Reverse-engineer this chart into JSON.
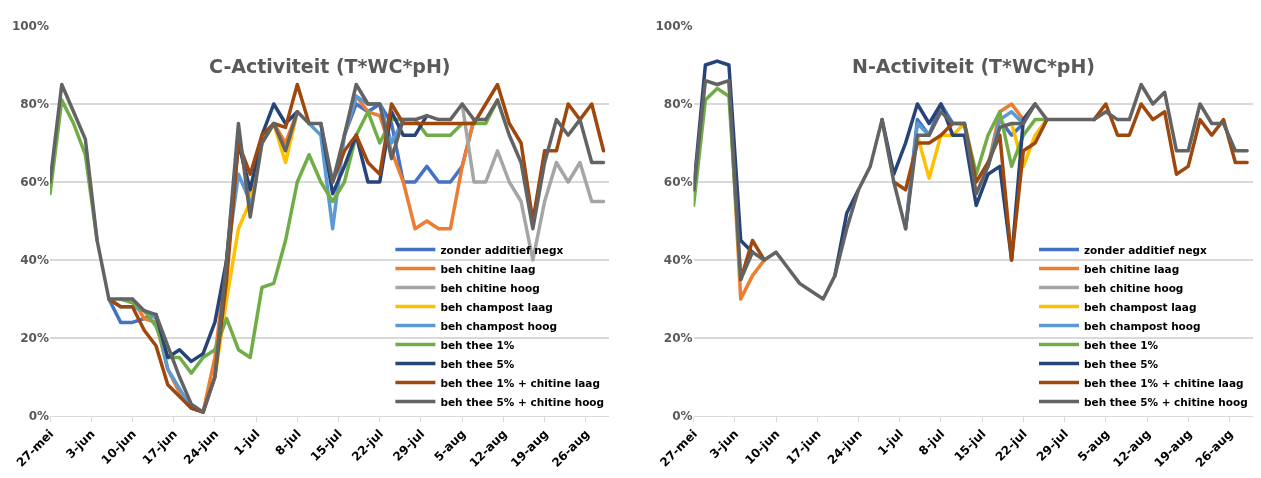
{
  "chart_data": [
    {
      "type": "line",
      "title": "C-Activiteit (T*WC*pH)",
      "grid": "y",
      "legend": "bottom right",
      "marker": "none",
      "line_style": "solid",
      "ylim": [
        0,
        100
      ],
      "yticks": [
        {
          "value": 0,
          "label": "0%"
        },
        {
          "value": 20,
          "label": "20%"
        },
        {
          "value": 40,
          "label": "40%"
        },
        {
          "value": 60,
          "label": "60%"
        },
        {
          "value": 80,
          "label": "80%"
        },
        {
          "value": 100,
          "label": "100%"
        }
      ],
      "xlim": [
        "--05-27",
        "--08-30"
      ],
      "xticks": [
        {
          "value": "--05-27",
          "label": "27-mei"
        },
        {
          "value": "--06-03",
          "label": "3-jun"
        },
        {
          "value": "--06-10",
          "label": "10-jun"
        },
        {
          "value": "--06-17",
          "label": "17-jun"
        },
        {
          "value": "--06-24",
          "label": "24-jun"
        },
        {
          "value": "--07-01",
          "label": "1-jul"
        },
        {
          "value": "--07-08",
          "label": "8-jul"
        },
        {
          "value": "--07-15",
          "label": "15-jul"
        },
        {
          "value": "--07-22",
          "label": "22-jul"
        },
        {
          "value": "--07-29",
          "label": "29-jul"
        },
        {
          "value": "--08-05",
          "label": "5-aug"
        },
        {
          "value": "--08-12",
          "label": "12-aug"
        },
        {
          "value": "--08-19",
          "label": "19-aug"
        },
        {
          "value": "--08-26",
          "label": "26-aug"
        }
      ],
      "x": [
        "--05-27",
        "--05-29",
        "--05-31",
        "--06-02",
        "--06-04",
        "--06-06",
        "--06-08",
        "--06-10",
        "--06-12",
        "--06-14",
        "--06-16",
        "--06-18",
        "--06-20",
        "--06-22",
        "--06-24",
        "--06-26",
        "--06-28",
        "--06-30",
        "--07-02",
        "--07-04",
        "--07-06",
        "--07-08",
        "--07-10",
        "--07-12",
        "--07-14",
        "--07-16",
        "--07-18",
        "--07-20",
        "--07-22",
        "--07-24",
        "--07-26",
        "--07-28",
        "--07-30",
        "--08-01",
        "--08-03",
        "--08-05",
        "--08-07",
        "--08-09",
        "--08-11",
        "--08-13",
        "--08-15",
        "--08-17",
        "--08-19",
        "--08-21",
        "--08-23",
        "--08-25",
        "--08-27",
        "--08-29"
      ],
      "series": [
        {
          "name": "zonder additief negx",
          "color": "#4472c4",
          "values": [
            null,
            null,
            null,
            null,
            null,
            30,
            24,
            24,
            25,
            26,
            null,
            null,
            null,
            null,
            null,
            null,
            null,
            null,
            null,
            null,
            null,
            null,
            null,
            null,
            null,
            72,
            80,
            78,
            80,
            75,
            60,
            60,
            64,
            60,
            60,
            64,
            76,
            null,
            null,
            null,
            null,
            null,
            null,
            null,
            null,
            null,
            null,
            null
          ]
        },
        {
          "name": "beh chitine laag",
          "color": "#ed7d31",
          "values": [
            null,
            null,
            null,
            null,
            null,
            null,
            null,
            30,
            25,
            24,
            12,
            6,
            2,
            1,
            15,
            40,
            72,
            55,
            70,
            75,
            70,
            78,
            null,
            null,
            null,
            72,
            82,
            78,
            77,
            68,
            60,
            48,
            50,
            48,
            48,
            64,
            76,
            null,
            null,
            null,
            null,
            null,
            null,
            null,
            null,
            null,
            null,
            null
          ]
        },
        {
          "name": "beh chitine hoog",
          "color": "#a5a5a5",
          "values": [
            null,
            null,
            null,
            null,
            null,
            null,
            null,
            null,
            null,
            null,
            null,
            null,
            null,
            null,
            null,
            null,
            null,
            null,
            null,
            null,
            null,
            null,
            null,
            null,
            null,
            null,
            null,
            null,
            null,
            null,
            null,
            null,
            null,
            null,
            null,
            80,
            60,
            60,
            68,
            60,
            55,
            40,
            55,
            65,
            60,
            65,
            55,
            55
          ]
        },
        {
          "name": "beh champost laag",
          "color": "#ffc000",
          "values": [
            null,
            null,
            null,
            null,
            null,
            null,
            null,
            null,
            null,
            null,
            null,
            null,
            null,
            null,
            10,
            30,
            48,
            55,
            70,
            75,
            65,
            78,
            null,
            null,
            null,
            null,
            null,
            null,
            null,
            null,
            null,
            null,
            null,
            null,
            null,
            null,
            null,
            null,
            null,
            null,
            null,
            null,
            null,
            null,
            null,
            null,
            null,
            null
          ]
        },
        {
          "name": "beh champost hoog",
          "color": "#5b9bd5",
          "values": [
            null,
            null,
            null,
            null,
            null,
            30,
            28,
            28,
            27,
            25,
            12,
            7,
            2,
            1,
            null,
            40,
            62,
            55,
            null,
            null,
            null,
            null,
            75,
            72,
            48,
            72,
            82,
            80,
            80,
            70,
            76,
            null,
            null,
            null,
            null,
            null,
            null,
            null,
            null,
            null,
            null,
            null,
            null,
            null,
            null,
            null,
            null,
            null
          ]
        },
        {
          "name": "beh thee 1%",
          "color": "#70ad47",
          "values": [
            57,
            81,
            75,
            67,
            45,
            null,
            30,
            29,
            27,
            23,
            15,
            15,
            11,
            15,
            17,
            25,
            17,
            15,
            33,
            34,
            45,
            60,
            67,
            60,
            55,
            60,
            72,
            78,
            70,
            76,
            76,
            76,
            72,
            72,
            72,
            75,
            75,
            75,
            81,
            null,
            null,
            null,
            null,
            null,
            null,
            null,
            null,
            null
          ]
        },
        {
          "name": "beh thee 5%",
          "color": "#264478",
          "values": [
            null,
            null,
            null,
            null,
            null,
            null,
            null,
            null,
            null,
            26,
            15,
            17,
            14,
            16,
            24,
            40,
            70,
            58,
            72,
            80,
            75,
            78,
            null,
            75,
            57,
            64,
            72,
            60,
            60,
            78,
            72,
            72,
            77,
            null,
            null,
            null,
            null,
            null,
            null,
            null,
            null,
            null,
            null,
            null,
            null,
            null,
            null,
            null
          ]
        },
        {
          "name": "beh thee 1% + chitine laag",
          "color": "#9e480e",
          "values": [
            null,
            null,
            null,
            null,
            null,
            30,
            28,
            28,
            22,
            18,
            8,
            5,
            2,
            1,
            10,
            35,
            70,
            62,
            72,
            75,
            74,
            85,
            75,
            null,
            60,
            68,
            72,
            65,
            62,
            80,
            75,
            75,
            75,
            75,
            75,
            75,
            75,
            80,
            85,
            75,
            70,
            50,
            68,
            68,
            80,
            76,
            80,
            68
          ]
        },
        {
          "name": "beh thee 5% + chitine hoog",
          "color": "#636363",
          "values": [
            60,
            85,
            78,
            71,
            45,
            30,
            30,
            30,
            27,
            26,
            18,
            10,
            3,
            1,
            10,
            40,
            75,
            51,
            70,
            75,
            68,
            78,
            75,
            75,
            60,
            72,
            85,
            80,
            80,
            66,
            76,
            76,
            77,
            76,
            76,
            80,
            76,
            76,
            81,
            72,
            65,
            48,
            65,
            76,
            72,
            76,
            65,
            65
          ]
        }
      ]
    },
    {
      "type": "line",
      "title": "N-Activiteit (T*WC*pH)",
      "grid": "y",
      "legend": "bottom right",
      "marker": "none",
      "line_style": "solid",
      "ylim": [
        0,
        100
      ],
      "yticks": [
        {
          "value": 0,
          "label": "0%"
        },
        {
          "value": 20,
          "label": "20%"
        },
        {
          "value": 40,
          "label": "40%"
        },
        {
          "value": 60,
          "label": "60%"
        },
        {
          "value": 80,
          "label": "80%"
        },
        {
          "value": 100,
          "label": "100%"
        }
      ],
      "xlim": [
        "--05-27",
        "--08-30"
      ],
      "xticks": [
        {
          "value": "--05-27",
          "label": "27-mei"
        },
        {
          "value": "--06-03",
          "label": "3-jun"
        },
        {
          "value": "--06-10",
          "label": "10-jun"
        },
        {
          "value": "--06-17",
          "label": "17-jun"
        },
        {
          "value": "--06-24",
          "label": "24-jun"
        },
        {
          "value": "--07-01",
          "label": "1-jul"
        },
        {
          "value": "--07-08",
          "label": "8-jul"
        },
        {
          "value": "--07-15",
          "label": "15-jul"
        },
        {
          "value": "--07-22",
          "label": "22-jul"
        },
        {
          "value": "--07-29",
          "label": "29-jul"
        },
        {
          "value": "--08-05",
          "label": "5-aug"
        },
        {
          "value": "--08-12",
          "label": "12-aug"
        },
        {
          "value": "--08-19",
          "label": "19-aug"
        },
        {
          "value": "--08-26",
          "label": "26-aug"
        }
      ],
      "x": [
        "--05-27",
        "--05-29",
        "--05-31",
        "--06-02",
        "--06-04",
        "--06-06",
        "--06-08",
        "--06-10",
        "--06-12",
        "--06-14",
        "--06-16",
        "--06-18",
        "--06-20",
        "--06-22",
        "--06-24",
        "--06-26",
        "--06-28",
        "--06-30",
        "--07-02",
        "--07-04",
        "--07-06",
        "--07-08",
        "--07-10",
        "--07-12",
        "--07-14",
        "--07-16",
        "--07-18",
        "--07-20",
        "--07-22",
        "--07-24",
        "--07-26",
        "--07-28",
        "--07-30",
        "--08-01",
        "--08-03",
        "--08-05",
        "--08-07",
        "--08-09",
        "--08-11",
        "--08-13",
        "--08-15",
        "--08-17",
        "--08-19",
        "--08-21",
        "--08-23",
        "--08-25",
        "--08-27",
        "--08-29"
      ],
      "series": [
        {
          "name": "zonder additief negx",
          "color": "#4472c4",
          "values": [
            null,
            null,
            null,
            null,
            null,
            null,
            null,
            null,
            null,
            null,
            null,
            null,
            null,
            null,
            null,
            null,
            null,
            null,
            48,
            76,
            72,
            80,
            75,
            null,
            null,
            null,
            76,
            72,
            75,
            null,
            null,
            null,
            null,
            null,
            null,
            null,
            null,
            null,
            null,
            null,
            null,
            null,
            null,
            null,
            null,
            null,
            null,
            null
          ]
        },
        {
          "name": "beh chitine laag",
          "color": "#ed7d31",
          "values": [
            null,
            null,
            null,
            86,
            30,
            36,
            40,
            null,
            null,
            null,
            null,
            null,
            null,
            null,
            null,
            null,
            null,
            null,
            null,
            null,
            null,
            null,
            null,
            null,
            null,
            64,
            78,
            80,
            76,
            80,
            null,
            null,
            null,
            null,
            null,
            null,
            null,
            null,
            null,
            null,
            null,
            null,
            null,
            null,
            null,
            null,
            null,
            null
          ]
        },
        {
          "name": "beh chitine hoog",
          "color": "#a5a5a5",
          "values": [
            null,
            null,
            null,
            null,
            null,
            null,
            null,
            null,
            null,
            null,
            null,
            null,
            null,
            null,
            null,
            null,
            null,
            null,
            null,
            null,
            null,
            null,
            null,
            null,
            null,
            null,
            null,
            null,
            null,
            null,
            null,
            null,
            null,
            null,
            null,
            null,
            null,
            null,
            null,
            null,
            null,
            null,
            null,
            null,
            null,
            null,
            null,
            null
          ]
        },
        {
          "name": "beh champost laag",
          "color": "#ffc000",
          "values": [
            null,
            null,
            null,
            null,
            null,
            null,
            null,
            null,
            null,
            null,
            null,
            null,
            null,
            null,
            null,
            null,
            null,
            null,
            null,
            72,
            61,
            72,
            72,
            75,
            null,
            null,
            null,
            75,
            64,
            72,
            76,
            null,
            null,
            null,
            null,
            null,
            null,
            null,
            null,
            null,
            null,
            null,
            null,
            null,
            null,
            null,
            null,
            null
          ]
        },
        {
          "name": "beh champost hoog",
          "color": "#5b9bd5",
          "values": [
            null,
            null,
            null,
            null,
            null,
            null,
            null,
            null,
            null,
            null,
            null,
            null,
            null,
            null,
            null,
            null,
            null,
            null,
            48,
            75,
            72,
            null,
            null,
            null,
            null,
            64,
            76,
            78,
            75,
            null,
            null,
            null,
            null,
            null,
            null,
            null,
            null,
            null,
            null,
            null,
            null,
            null,
            null,
            null,
            null,
            null,
            null,
            null
          ]
        },
        {
          "name": "beh thee 1%",
          "color": "#70ad47",
          "values": [
            54,
            81,
            84,
            82,
            35,
            null,
            null,
            null,
            null,
            null,
            null,
            null,
            null,
            null,
            null,
            null,
            null,
            null,
            null,
            null,
            null,
            null,
            null,
            75,
            62,
            72,
            78,
            64,
            72,
            76,
            76,
            null,
            null,
            null,
            null,
            null,
            null,
            null,
            null,
            null,
            null,
            null,
            null,
            null,
            null,
            null,
            null,
            null
          ]
        },
        {
          "name": "beh thee 5%",
          "color": "#264478",
          "values": [
            58,
            90,
            91,
            90,
            45,
            42,
            null,
            null,
            null,
            null,
            null,
            null,
            36,
            52,
            58,
            null,
            76,
            62,
            70,
            80,
            75,
            80,
            72,
            72,
            54,
            62,
            64,
            40,
            76,
            80,
            null,
            null,
            null,
            null,
            null,
            null,
            null,
            null,
            null,
            null,
            null,
            null,
            null,
            null,
            null,
            null,
            null,
            null
          ]
        },
        {
          "name": "beh thee 1% + chitine laag",
          "color": "#9e480e",
          "values": [
            null,
            null,
            null,
            null,
            35,
            45,
            40,
            null,
            null,
            null,
            null,
            null,
            null,
            null,
            null,
            null,
            null,
            60,
            58,
            70,
            70,
            72,
            75,
            75,
            60,
            65,
            72,
            40,
            68,
            70,
            76,
            null,
            null,
            null,
            76,
            80,
            72,
            72,
            80,
            76,
            78,
            62,
            64,
            76,
            72,
            76,
            65,
            65
          ]
        },
        {
          "name": "beh thee 5% + chitine hoog",
          "color": "#636363",
          "values": [
            58,
            86,
            85,
            86,
            35,
            42,
            40,
            42,
            38,
            34,
            32,
            30,
            36,
            48,
            58,
            64,
            76,
            60,
            48,
            72,
            72,
            78,
            75,
            75,
            57,
            64,
            74,
            75,
            75,
            80,
            76,
            76,
            76,
            76,
            76,
            78,
            76,
            76,
            85,
            80,
            83,
            68,
            68,
            80,
            75,
            75,
            68,
            68
          ]
        }
      ]
    }
  ]
}
